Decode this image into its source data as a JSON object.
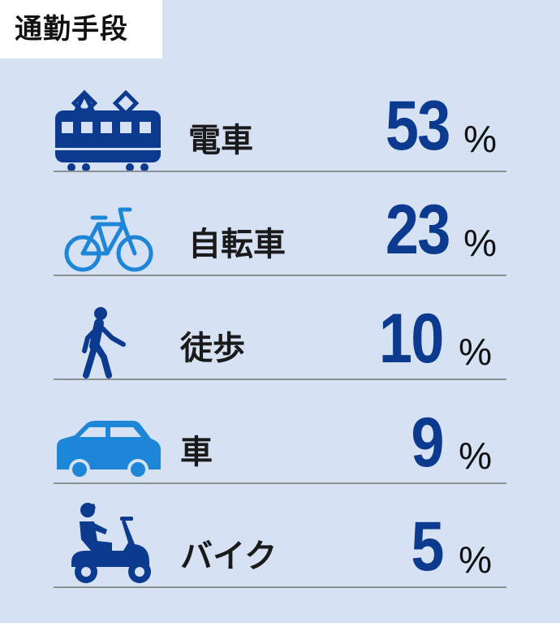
{
  "header": {
    "title": "通勤手段"
  },
  "chart_data": {
    "type": "table",
    "title": "通勤手段",
    "unit": "%",
    "categories": [
      "電車",
      "自転車",
      "徒歩",
      "車",
      "バイク"
    ],
    "values": [
      53,
      23,
      10,
      9,
      5
    ],
    "icons": [
      "train-icon",
      "bicycle-icon",
      "walking-person-icon",
      "car-icon",
      "scooter-icon"
    ],
    "colors": {
      "accent": "#0b3a8f",
      "icon_light": "#1e86d6",
      "background": "#d6e2f4"
    }
  }
}
